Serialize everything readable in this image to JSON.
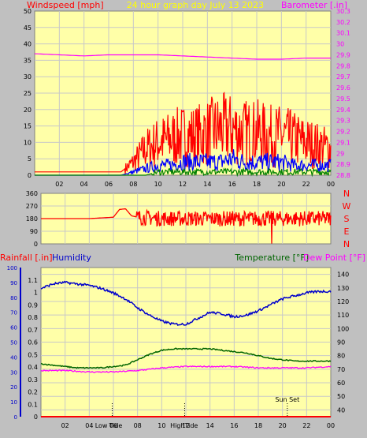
{
  "header": {
    "left_title": "Windspeed [mph]",
    "center_title": "24 hour graph day   July 13 2023",
    "right_title": "Barometer [.in]"
  },
  "panel_wind": {
    "y_left_ticks": [
      "0",
      "5",
      "10",
      "15",
      "20",
      "25",
      "30",
      "35",
      "40",
      "45",
      "50"
    ],
    "y_right_ticks": [
      "28.8",
      "28.9",
      "29",
      "29.1",
      "29.2",
      "29.3",
      "29.4",
      "29.5",
      "29.6",
      "29.7",
      "29.8",
      "29.9",
      "30",
      "30.1",
      "30.2",
      "30.3"
    ],
    "x_ticks": [
      "02",
      "04",
      "06",
      "08",
      "10",
      "12",
      "14",
      "16",
      "18",
      "20",
      "22",
      "00"
    ]
  },
  "panel_dir": {
    "y_ticks": [
      "360",
      "270",
      "180",
      "90",
      "0"
    ],
    "compass": [
      "N",
      "W",
      "S",
      "E",
      "N"
    ]
  },
  "panel_bottom": {
    "labels": {
      "rainfall": "Rainfall [.in]",
      "humidity": "Humidity",
      "temperature": "Temperature [°F]",
      "dewpoint": "Dew Point [°F]"
    },
    "y_hum_ticks": [
      "0",
      "10",
      "20",
      "30",
      "40",
      "50",
      "60",
      "70",
      "80",
      "90",
      "100"
    ],
    "y_rain_ticks": [
      "0",
      "0.1",
      "0.2",
      "0.3",
      "0.4",
      "0.5",
      "0.6",
      "0.7",
      "0.8",
      "0.9",
      "1",
      "1.1"
    ],
    "y_temp_ticks": [
      "40",
      "50",
      "60",
      "70",
      "80",
      "90",
      "100",
      "110",
      "120",
      "130",
      "140"
    ],
    "x_ticks": [
      "02",
      "04",
      "06",
      "08",
      "10",
      "12",
      "14",
      "16",
      "18",
      "20",
      "22",
      "00"
    ],
    "tide_labels": [
      "Low",
      "Tide",
      "High",
      "Tide"
    ],
    "sunset_label": "Sun Set"
  },
  "colors": {
    "frame": "#C0C0C0",
    "plot_bg": "#FFFFA8",
    "grid": "#C8C8C8",
    "wind_avg": "#0000FF",
    "wind_gust": "#FF0000",
    "wind_lull": "#008000",
    "barometer": "#FF00FF",
    "direction": "#FF0000",
    "humidity": "#0000CC",
    "temperature": "#006400",
    "dewpoint": "#FF00FF",
    "rainfall": "#FF0000",
    "header_title": "#FFFF00"
  },
  "chart_data": [
    {
      "type": "line",
      "series": [
        {
          "role": "barometer",
          "x": [
            0,
            2,
            4,
            6,
            8,
            10,
            12,
            14,
            16,
            18,
            20,
            22,
            24
          ],
          "values": [
            29.91,
            29.9,
            29.89,
            29.9,
            29.9,
            29.9,
            29.89,
            29.88,
            29.87,
            29.86,
            29.86,
            29.87,
            29.87
          ]
        },
        {
          "role": "wind_gust",
          "x": [
            0,
            2,
            4,
            6,
            7,
            8,
            9,
            10,
            11,
            12,
            13,
            14,
            15,
            16,
            17,
            18,
            19,
            20,
            21,
            22,
            23,
            24
          ],
          "values": [
            1,
            1,
            1,
            1,
            1,
            4,
            8,
            10,
            11,
            12,
            12,
            13,
            14,
            14,
            13,
            13,
            12,
            12,
            11,
            10,
            9,
            8
          ]
        },
        {
          "role": "wind_avg",
          "x": [
            0,
            2,
            4,
            6,
            7,
            8,
            9,
            10,
            11,
            12,
            13,
            14,
            15,
            16,
            17,
            18,
            19,
            20,
            21,
            22,
            23,
            24
          ],
          "values": [
            0,
            0,
            0,
            0,
            0,
            1,
            2,
            3,
            3,
            4,
            4,
            4,
            4,
            5,
            4,
            4,
            4,
            4,
            3,
            3,
            3,
            3
          ]
        },
        {
          "role": "wind_lull",
          "x": [
            0,
            2,
            4,
            6,
            7,
            8,
            9,
            10,
            11,
            12,
            13,
            14,
            15,
            16,
            17,
            18,
            19,
            20,
            21,
            22,
            23,
            24
          ],
          "values": [
            0,
            0,
            0,
            0,
            0,
            0,
            0,
            1,
            1,
            1,
            1,
            1,
            1,
            1,
            1,
            1,
            1,
            1,
            1,
            1,
            1,
            1
          ]
        }
      ],
      "y_left_range": [
        0,
        50
      ],
      "y_right_range": [
        28.8,
        30.3
      ],
      "x_range": [
        0,
        24
      ]
    },
    {
      "type": "line",
      "series": [
        {
          "role": "direction",
          "x": [
            0,
            2,
            4,
            6,
            6.5,
            7,
            7.5,
            8,
            10,
            12,
            14,
            16,
            18,
            19,
            20,
            22,
            24
          ],
          "values": [
            180,
            180,
            180,
            190,
            245,
            250,
            200,
            190,
            180,
            180,
            180,
            180,
            180,
            180,
            180,
            180,
            180
          ]
        }
      ],
      "y_range": [
        0,
        360
      ],
      "x_range": [
        0,
        24
      ]
    },
    {
      "type": "line",
      "series": [
        {
          "role": "humidity",
          "x": [
            0,
            1,
            2,
            3,
            4,
            5,
            6,
            7,
            8,
            9,
            10,
            11,
            12,
            13,
            14,
            15,
            16,
            17,
            18,
            19,
            20,
            21,
            22,
            23,
            24
          ],
          "values": [
            86,
            89,
            90,
            89,
            88,
            86,
            83,
            79,
            73,
            68,
            64,
            62,
            62,
            66,
            70,
            69,
            67,
            68,
            71,
            75,
            79,
            81,
            83,
            84,
            84
          ]
        },
        {
          "role": "temperature",
          "x": [
            0,
            1,
            2,
            3,
            4,
            5,
            6,
            7,
            8,
            9,
            10,
            11,
            12,
            13,
            14,
            15,
            16,
            17,
            18,
            19,
            20,
            21,
            22,
            23,
            24
          ],
          "values": [
            74,
            73,
            72,
            71,
            71,
            71,
            72,
            73,
            77,
            81,
            84,
            85,
            85,
            85,
            85,
            84,
            83,
            82,
            80,
            78,
            77,
            76,
            76,
            76,
            76
          ]
        },
        {
          "role": "dewpoint",
          "x": [
            0,
            2,
            4,
            6,
            8,
            10,
            12,
            14,
            16,
            18,
            20,
            22,
            24
          ],
          "values": [
            69,
            69,
            68,
            68,
            69,
            71,
            72,
            72,
            72,
            71,
            71,
            71,
            72
          ]
        },
        {
          "role": "rainfall",
          "x": [
            0,
            24
          ],
          "values": [
            0,
            0
          ]
        }
      ],
      "y_hum_range": [
        0,
        100
      ],
      "y_rain_range": [
        0,
        1.2
      ],
      "y_temp_range": [
        35,
        145
      ],
      "x_range": [
        0,
        24
      ],
      "events": [
        {
          "role": "low_tide",
          "hour": 5.9
        },
        {
          "role": "high_tide",
          "hour": 11.9
        },
        {
          "role": "sun_set",
          "hour": 20.4
        }
      ]
    }
  ]
}
